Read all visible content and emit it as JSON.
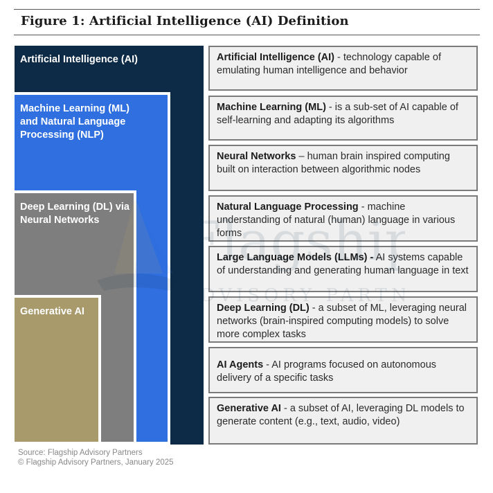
{
  "figure_title": "Figure 1: Artificial Intelligence (AI) Definition",
  "layers": {
    "ai": {
      "label": "Artificial Intelligence (AI)",
      "color": "#0d2b47"
    },
    "ml_nlp": {
      "label": "Machine Learning (ML) and Natural Language Processing (NLP)",
      "color": "#2f6fdf"
    },
    "dl": {
      "label": "Deep Learning (DL) via Neural Networks",
      "color": "#7e7e7e"
    },
    "genai": {
      "label": "Generative AI",
      "color": "#a89a6b"
    }
  },
  "definitions": [
    {
      "term": "Artificial Intelligence (AI)",
      "separator": " - ",
      "text": "technology capable of emulating human intelligence and behavior"
    },
    {
      "term": "Machine Learning (ML)",
      "separator": " - ",
      "text": "is a sub-set of AI capable of self-learning and adapting its algorithms"
    },
    {
      "term": "Neural Networks",
      "separator": " – ",
      "text": "human brain inspired computing built on interaction between algorithmic nodes"
    },
    {
      "term": "Natural Language Processing",
      "separator": " - ",
      "text": "machine understanding of natural (human) language in various forms"
    },
    {
      "term": "Large Language Models (LLMs) -",
      "separator": " ",
      "text": "AI systems capable of understanding and generating human language in text"
    },
    {
      "term": "Deep Learning (DL)",
      "separator": " - ",
      "text": "a subset of ML, leveraging neural networks (brain-inspired computing models) to solve more complex tasks"
    },
    {
      "term": "AI Agents",
      "separator": " - ",
      "text": "AI programs focused on autonomous delivery of a specific tasks"
    },
    {
      "term": "Generative AI",
      "separator": " - ",
      "text": "a subset of AI, leveraging DL models to generate content (e.g., text, audio, video)"
    }
  ],
  "watermark": {
    "name": "Flagship",
    "tagline": "ADVISORY PARTNERS"
  },
  "footer": {
    "source": "Source: Flagship Advisory Partners",
    "copyright": "© Flagship Advisory Partners, January 2025"
  }
}
